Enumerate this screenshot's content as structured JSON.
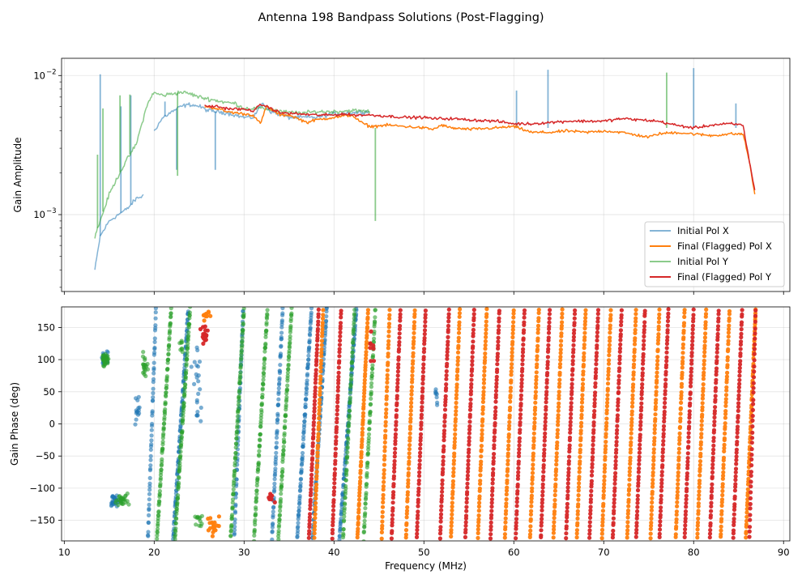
{
  "chart_data": {
    "title": "Antenna 198 Bandpass Solutions (Post-Flagging)",
    "type": "line",
    "xlabel": "Frequency (MHz)",
    "xlim": [
      9.7,
      90.7
    ],
    "xticks": [
      10,
      20,
      30,
      40,
      50,
      60,
      70,
      80,
      90
    ],
    "colors": {
      "initial_x": "#1f77b4",
      "final_x": "#ff7f0e",
      "initial_y": "#2ca02c",
      "final_y": "#d62728"
    },
    "panels": [
      {
        "type": "line",
        "ylabel": "Gain Amplitude",
        "yscale": "log",
        "ylim": [
          0.00028,
          0.0133
        ],
        "yticks": [
          {
            "value": 0.01,
            "base": "10",
            "exp": "−2"
          },
          {
            "value": 0.001,
            "base": "10",
            "exp": "−3"
          }
        ],
        "legend_position": "lower-right",
        "legend": [
          "Initial Pol X",
          "Final (Flagged) Pol X",
          "Initial Pol Y",
          "Final (Flagged) Pol Y"
        ],
        "series": [
          {
            "name": "Initial Pol X",
            "key": "initial_x",
            "x": [
              13.4,
              14,
              15,
              16,
              17,
              18,
              18.9,
              19.4,
              20,
              20.5,
              21,
              22,
              23,
              24,
              25,
              26,
              27,
              28,
              29,
              30,
              31,
              32,
              33,
              35,
              37,
              38,
              40,
              42,
              44,
              46,
              48,
              50,
              52,
              53,
              55,
              60,
              65,
              70,
              75,
              80,
              85,
              86.5
            ],
            "y": [
              0.0004,
              0.0007,
              0.0009,
              0.001,
              0.0011,
              0.0013,
              0.00138,
              null,
              0.004,
              0.0045,
              0.005,
              0.0055,
              0.006,
              0.0062,
              0.006,
              0.0056,
              0.0055,
              0.0054,
              0.0052,
              0.005,
              0.005,
              0.0063,
              0.0055,
              0.005,
              0.005,
              0.005,
              0.0053,
              0.0054,
              0.0055,
              null,
              null,
              null,
              0.0055,
              null,
              null,
              null,
              null,
              null,
              null,
              null,
              null,
              null
            ],
            "spikes": [
              [
                14.0,
                0.0102
              ],
              [
                16.3,
                0.006
              ],
              [
                17.4,
                0.0072
              ],
              [
                21.2,
                0.0065
              ],
              [
                22.5,
                0.0021
              ],
              [
                26.8,
                0.0021
              ],
              [
                60.3,
                0.0078
              ],
              [
                63.8,
                0.011
              ],
              [
                80.0,
                0.0113
              ],
              [
                84.7,
                0.0063
              ]
            ]
          },
          {
            "name": "Final (Flagged) Pol X",
            "key": "final_x",
            "x": [
              25.6,
              27,
              28,
              30,
              31,
              31.8,
              32.5,
              34,
              35,
              36,
              37,
              38,
              40,
              42,
              43,
              44,
              46,
              48,
              50,
              51,
              52,
              53,
              55,
              58,
              60,
              62,
              64,
              66,
              68,
              70,
              72,
              74,
              75,
              76,
              78,
              80,
              82,
              84,
              85.5,
              86.2,
              86.8
            ],
            "y": [
              0.006,
              0.0058,
              0.0055,
              0.0053,
              0.0052,
              0.0045,
              0.006,
              0.0052,
              0.0052,
              0.0049,
              0.0046,
              0.0048,
              0.005,
              0.0052,
              0.0046,
              0.0043,
              0.0044,
              0.0043,
              0.0042,
              0.0041,
              0.0044,
              0.0042,
              0.0041,
              0.0042,
              0.0043,
              0.0039,
              0.0039,
              0.004,
              0.0039,
              0.004,
              0.0039,
              0.0037,
              0.0036,
              0.0038,
              0.0039,
              0.0038,
              0.0037,
              0.0038,
              0.0038,
              0.0024,
              0.0014
            ]
          },
          {
            "name": "Initial Pol Y",
            "key": "initial_y",
            "x": [
              13.4,
              14,
              15,
              16,
              17,
              18,
              19,
              19.5,
              20,
              21,
              22,
              23,
              24,
              25,
              26,
              27,
              28,
              29,
              30,
              31,
              32,
              33,
              35,
              37,
              38,
              40,
              42,
              44
            ],
            "y": [
              0.0007,
              0.0009,
              0.0014,
              0.0019,
              0.0025,
              0.0032,
              0.0055,
              0.0068,
              0.0075,
              0.0072,
              0.0074,
              0.0076,
              0.0074,
              0.007,
              0.0068,
              0.0066,
              0.0064,
              0.0063,
              0.0058,
              0.0058,
              0.0058,
              0.0057,
              0.0054,
              0.0054,
              0.0055,
              0.0055,
              0.0056,
              0.0055
            ],
            "spikes": [
              [
                13.7,
                0.0027
              ],
              [
                14.3,
                0.0058
              ],
              [
                16.2,
                0.0072
              ],
              [
                17.3,
                0.0073
              ],
              [
                22.6,
                0.0019
              ],
              [
                44.6,
                0.0009
              ],
              [
                77.0,
                0.0105
              ]
            ]
          },
          {
            "name": "Final (Flagged) Pol Y",
            "key": "final_y",
            "x": [
              25.6,
              27,
              28,
              30,
              31,
              32,
              34,
              36,
              38,
              40,
              41,
              42,
              44,
              46,
              48,
              50,
              51,
              52,
              53,
              55,
              58,
              60,
              62,
              64,
              66,
              68,
              70,
              72,
              74,
              76,
              78,
              80,
              82,
              84,
              85.5,
              86.2,
              86.8
            ],
            "y": [
              0.006,
              0.006,
              0.0058,
              0.0057,
              0.0056,
              0.0062,
              0.0054,
              0.0053,
              0.0052,
              0.0052,
              0.0053,
              0.0052,
              0.0052,
              0.0051,
              0.005,
              0.005,
              0.0049,
              0.0049,
              0.0049,
              0.0048,
              0.0047,
              0.0045,
              0.0045,
              0.0046,
              0.0047,
              0.0047,
              0.0047,
              0.0049,
              0.0048,
              0.0047,
              0.0044,
              0.0042,
              0.0044,
              0.0045,
              0.0044,
              0.0024,
              0.0015
            ]
          }
        ]
      },
      {
        "type": "scatter",
        "ylabel": "Gain Phase (deg)",
        "ylim": [
          -182,
          182
        ],
        "yticks": [
          150,
          100,
          50,
          0,
          -50,
          -100,
          -150
        ],
        "series": [
          {
            "name": "Initial Pol X",
            "key": "initial_x",
            "wraps": [
              [
                19.3,
                20.2
              ],
              [
                22.1,
                23.8
              ],
              [
                28.9,
                29.9
              ],
              [
                33.1,
                34.3
              ],
              [
                35.9,
                37.5
              ],
              [
                37.6,
                39.2
              ],
              [
                40.6,
                42.5
              ]
            ],
            "clusters": [
              [
                14.5,
                105,
                0.6,
                18,
                28
              ],
              [
                15.6,
                -120,
                0.8,
                15,
                28
              ],
              [
                18.2,
                20,
                0.4,
                40,
                14
              ],
              [
                24.8,
                60,
                0.8,
                110,
                22
              ],
              [
                51.4,
                40,
                0.2,
                30,
                8
              ]
            ]
          },
          {
            "name": "Final (Flagged) Pol X",
            "key": "final_x",
            "wraps": [
              [
                37.8,
                38.8
              ],
              [
                42.6,
                43.8
              ],
              [
                45.3,
                46.2
              ],
              [
                48.0,
                49.0
              ],
              [
                53.0,
                54.0
              ],
              [
                56.0,
                57.0
              ],
              [
                59.0,
                60.0
              ],
              [
                61.8,
                62.8
              ],
              [
                64.4,
                65.4
              ],
              [
                67.0,
                68.0
              ],
              [
                69.8,
                70.8
              ],
              [
                72.6,
                73.6
              ],
              [
                75.2,
                76.2
              ],
              [
                78.0,
                79.0
              ],
              [
                80.4,
                81.4
              ],
              [
                83.0,
                84.0
              ],
              [
                85.8,
                86.9
              ]
            ],
            "clusters": [
              [
                26.5,
                -160,
                1.0,
                20,
                20
              ],
              [
                25.8,
                170,
                0.6,
                10,
                10
              ]
            ]
          },
          {
            "name": "Initial Pol Y",
            "key": "initial_y",
            "wraps": [
              [
                20.3,
                21.9
              ],
              [
                22.3,
                24.0
              ],
              [
                28.5,
                30.0
              ],
              [
                31.1,
                32.6
              ],
              [
                33.8,
                35.3
              ],
              [
                41.0,
                42.3
              ],
              [
                43.3,
                44.6
              ]
            ],
            "clusters": [
              [
                14.5,
                100,
                0.6,
                15,
                30
              ],
              [
                16.4,
                -118,
                1.0,
                12,
                28
              ],
              [
                19.0,
                90,
                0.6,
                35,
                20
              ],
              [
                25.0,
                -150,
                0.6,
                25,
                12
              ],
              [
                23.0,
                120,
                0.3,
                20,
                8
              ]
            ]
          },
          {
            "name": "Final (Flagged) Pol Y",
            "key": "final_y",
            "wraps": [
              [
                37.2,
                38.3
              ],
              [
                39.8,
                40.8
              ],
              [
                46.4,
                47.4
              ],
              [
                49.2,
                50.2
              ],
              [
                51.8,
                52.8
              ],
              [
                54.6,
                55.6
              ],
              [
                57.4,
                58.4
              ],
              [
                60.2,
                61.2
              ],
              [
                63.0,
                64.0
              ],
              [
                65.8,
                66.8
              ],
              [
                68.4,
                69.4
              ],
              [
                71.0,
                72.0
              ],
              [
                73.6,
                74.6
              ],
              [
                76.2,
                77.2
              ],
              [
                79.0,
                80.0
              ],
              [
                81.8,
                82.8
              ],
              [
                84.4,
                85.4
              ],
              [
                86.2,
                86.9
              ]
            ],
            "clusters": [
              [
                25.6,
                140,
                0.6,
                20,
                16
              ],
              [
                33.0,
                -115,
                0.6,
                10,
                10
              ],
              [
                44.3,
                120,
                0.4,
                30,
                8
              ]
            ]
          }
        ]
      }
    ]
  }
}
